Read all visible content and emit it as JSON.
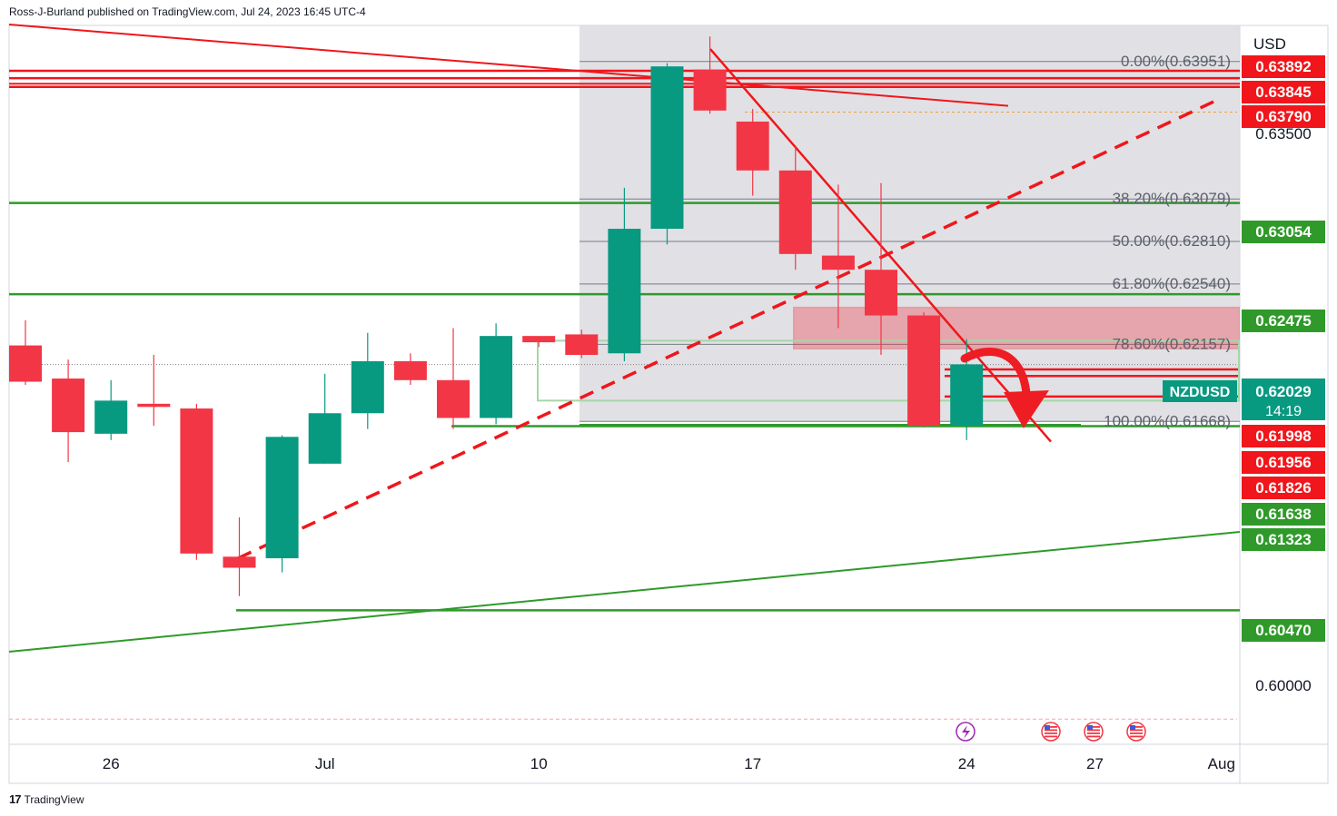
{
  "header": {
    "publisher_line": "Ross-J-Burland published on TradingView.com, Jul 24, 2023 16:45 UTC-4"
  },
  "footer": {
    "logo_glyph": "17",
    "brand": "TradingView"
  },
  "colors": {
    "up": "#089981",
    "down": "#f23645",
    "red_line": "#f0161b",
    "green_line": "#2f9a2a",
    "fib_line": "#787b86",
    "grid_bg": "#e0e0e3"
  },
  "chart_data": {
    "type": "candlestick",
    "symbol": "NZDUSD",
    "currency": "USD",
    "countdown": "14:19",
    "ylim": [
      0.5962,
      0.6418
    ],
    "x_ticks": [
      {
        "label": "26",
        "index": 2
      },
      {
        "label": "Jul",
        "index": 7
      },
      {
        "label": "10",
        "index": 12
      },
      {
        "label": "17",
        "index": 17
      },
      {
        "label": "24",
        "index": 22
      },
      {
        "label": "27",
        "index": 25
      },
      {
        "label": "Aug",
        "index": 28
      }
    ],
    "y_ticks": [
      {
        "label": "0.63500",
        "value": 0.635
      },
      {
        "label": "0.60000",
        "value": 0.6
      }
    ],
    "candles": [
      {
        "o": 0.6215,
        "h": 0.6231,
        "l": 0.619,
        "c": 0.6192
      },
      {
        "o": 0.6194,
        "h": 0.6206,
        "l": 0.6141,
        "c": 0.616
      },
      {
        "o": 0.6159,
        "h": 0.6193,
        "l": 0.6155,
        "c": 0.618
      },
      {
        "o": 0.6178,
        "h": 0.6209,
        "l": 0.6164,
        "c": 0.6176
      },
      {
        "o": 0.6175,
        "h": 0.6178,
        "l": 0.6079,
        "c": 0.6083
      },
      {
        "o": 0.6081,
        "h": 0.6106,
        "l": 0.6056,
        "c": 0.6074
      },
      {
        "o": 0.608,
        "h": 0.6158,
        "l": 0.6071,
        "c": 0.6157
      },
      {
        "o": 0.614,
        "h": 0.6197,
        "l": 0.614,
        "c": 0.6172
      },
      {
        "o": 0.6172,
        "h": 0.6223,
        "l": 0.6162,
        "c": 0.6205
      },
      {
        "o": 0.6205,
        "h": 0.621,
        "l": 0.619,
        "c": 0.6193
      },
      {
        "o": 0.6193,
        "h": 0.6226,
        "l": 0.6162,
        "c": 0.6169
      },
      {
        "o": 0.6169,
        "h": 0.6229,
        "l": 0.6165,
        "c": 0.6221
      },
      {
        "o": 0.6221,
        "h": 0.622,
        "l": 0.6214,
        "c": 0.6217
      },
      {
        "o": 0.6222,
        "h": 0.6225,
        "l": 0.6207,
        "c": 0.6209
      },
      {
        "o": 0.621,
        "h": 0.6315,
        "l": 0.6205,
        "c": 0.6289
      },
      {
        "o": 0.6289,
        "h": 0.6394,
        "l": 0.6279,
        "c": 0.6392
      },
      {
        "o": 0.639,
        "h": 0.6411,
        "l": 0.6362,
        "c": 0.6364
      },
      {
        "o": 0.6357,
        "h": 0.6365,
        "l": 0.631,
        "c": 0.6326
      },
      {
        "o": 0.6326,
        "h": 0.6342,
        "l": 0.6263,
        "c": 0.6273
      },
      {
        "o": 0.6272,
        "h": 0.6317,
        "l": 0.6226,
        "c": 0.6263
      },
      {
        "o": 0.6263,
        "h": 0.6318,
        "l": 0.6209,
        "c": 0.6234
      },
      {
        "o": 0.6234,
        "h": 0.6236,
        "l": 0.6163,
        "c": 0.6164
      },
      {
        "o": 0.6164,
        "h": 0.6219,
        "l": 0.6155,
        "c": 0.6203
      }
    ],
    "fib": [
      {
        "label": "0.00%(0.63951)",
        "value": 0.63951
      },
      {
        "label": "38.20%(0.63079)",
        "value": 0.63079
      },
      {
        "label": "50.00%(0.62810)",
        "value": 0.6281
      },
      {
        "label": "61.80%(0.62540)",
        "value": 0.6254
      },
      {
        "label": "78.60%(0.62157)",
        "value": 0.62157
      },
      {
        "label": "100.00%(0.61668)",
        "value": 0.61668
      }
    ],
    "levels": [
      {
        "label": "0.63892",
        "value": 0.63892,
        "color": "red"
      },
      {
        "label": "0.63845",
        "value": 0.63845,
        "color": "red"
      },
      {
        "label": "0.63790",
        "value": 0.6379,
        "color": "red"
      },
      {
        "label": "0.63054",
        "value": 0.63054,
        "color": "green"
      },
      {
        "label": "0.62475",
        "value": 0.62475,
        "color": "green"
      },
      {
        "label": "0.61998",
        "value": 0.61998,
        "color": "red"
      },
      {
        "label": "0.61956",
        "value": 0.61956,
        "color": "red"
      },
      {
        "label": "0.61826",
        "value": 0.61826,
        "color": "red"
      },
      {
        "label": "0.61638",
        "value": 0.61638,
        "color": "green"
      },
      {
        "label": "0.61323",
        "value": 0.61323,
        "color": "green"
      },
      {
        "label": "0.60470",
        "value": 0.6047,
        "color": "green"
      }
    ],
    "last_price": {
      "label": "0.62029",
      "value": 0.62029
    }
  }
}
